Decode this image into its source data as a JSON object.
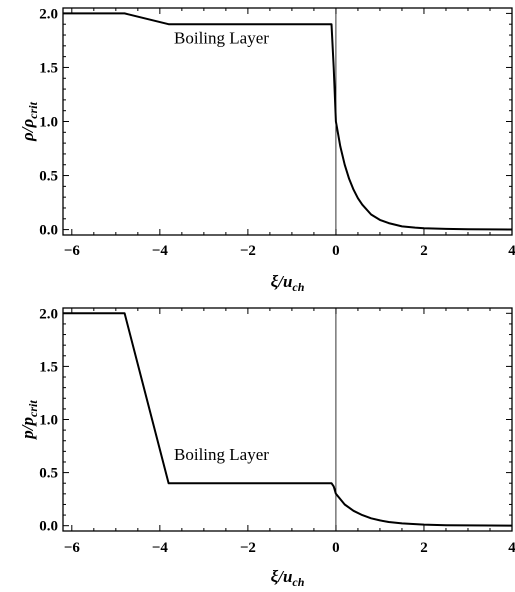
{
  "chart_data": [
    {
      "type": "line",
      "xlabel": {
        "main": "ξ/u",
        "sub": "ch"
      },
      "ylabel": {
        "main": "ρ/ρ",
        "sub": "crit"
      },
      "xlim": [
        -6.2,
        4.0
      ],
      "ylim": [
        -0.05,
        2.05
      ],
      "xticks": [
        -6,
        -4,
        -2,
        0,
        2,
        4
      ],
      "xtick_labels": [
        "−6",
        "−4",
        "−2",
        "0",
        "2",
        "4"
      ],
      "yticks": [
        0.0,
        0.5,
        1.0,
        1.5,
        2.0
      ],
      "ytick_labels": [
        "0.0",
        "0.5",
        "1.0",
        "1.5",
        "2.0"
      ],
      "vertical_line_x": 0,
      "annotations": [
        {
          "text": "Boiling Layer",
          "x": -2.6,
          "y": 1.72
        }
      ],
      "series": [
        {
          "x": [
            -6.2,
            -4.8,
            -3.8,
            -0.1,
            -0.05,
            0.0,
            0.1,
            0.2,
            0.3,
            0.4,
            0.5,
            0.6,
            0.8,
            1.0,
            1.2,
            1.5,
            1.8,
            2.0,
            2.5,
            3.0,
            3.5,
            4.0
          ],
          "y": [
            2.0,
            2.0,
            1.9,
            1.9,
            1.5,
            1.0,
            0.77,
            0.6,
            0.47,
            0.37,
            0.29,
            0.23,
            0.14,
            0.09,
            0.06,
            0.03,
            0.018,
            0.013,
            0.006,
            0.003,
            0.002,
            0.001
          ]
        }
      ]
    },
    {
      "type": "line",
      "xlabel": {
        "main": "ξ/u",
        "sub": "ch"
      },
      "ylabel": {
        "main": "p/p",
        "sub": "crit"
      },
      "xlim": [
        -6.2,
        4.0
      ],
      "ylim": [
        -0.05,
        2.05
      ],
      "xticks": [
        -6,
        -4,
        -2,
        0,
        2,
        4
      ],
      "xtick_labels": [
        "−6",
        "−4",
        "−2",
        "0",
        "2",
        "4"
      ],
      "yticks": [
        0.0,
        0.5,
        1.0,
        1.5,
        2.0
      ],
      "ytick_labels": [
        "0.0",
        "0.5",
        "1.0",
        "1.5",
        "2.0"
      ],
      "vertical_line_x": 0,
      "annotations": [
        {
          "text": "Boiling Layer",
          "x": -2.6,
          "y": 0.62
        }
      ],
      "series": [
        {
          "x": [
            -6.2,
            -4.8,
            -3.8,
            -0.1,
            -0.05,
            0.0,
            0.2,
            0.4,
            0.6,
            0.8,
            1.0,
            1.2,
            1.5,
            2.0,
            2.5,
            3.0,
            3.5,
            4.0
          ],
          "y": [
            2.0,
            2.0,
            0.4,
            0.4,
            0.37,
            0.3,
            0.2,
            0.14,
            0.1,
            0.07,
            0.05,
            0.035,
            0.022,
            0.01,
            0.005,
            0.003,
            0.002,
            0.001
          ]
        }
      ]
    }
  ]
}
